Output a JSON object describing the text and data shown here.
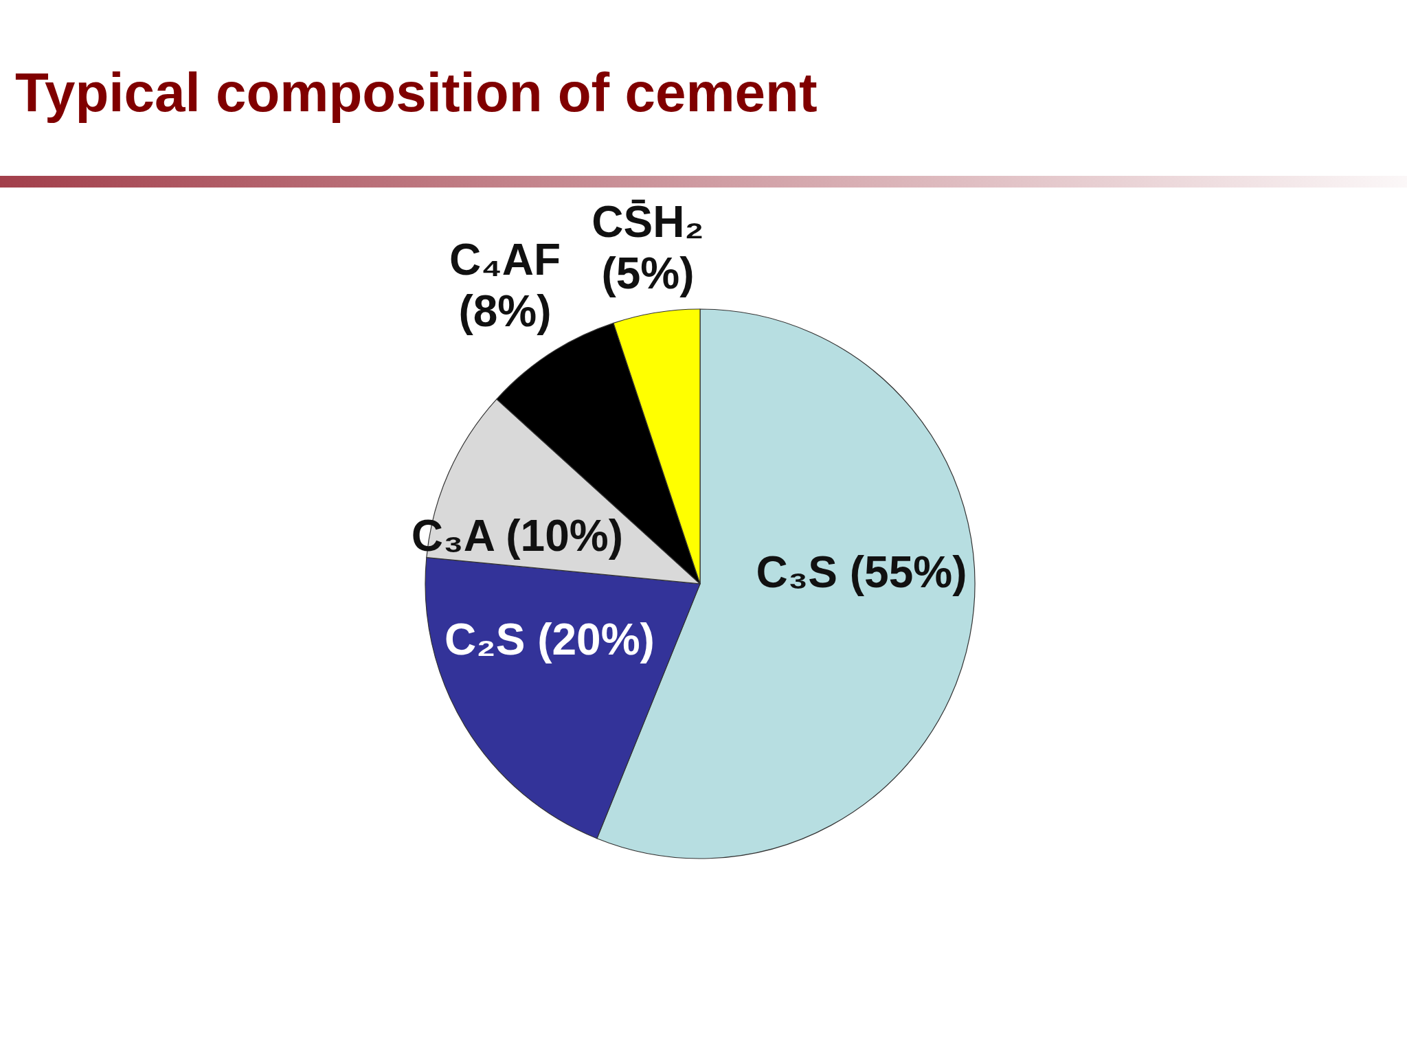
{
  "chart_data": {
    "type": "pie",
    "title": "Typical composition of cement",
    "categories": [
      "C₃S",
      "C₂S",
      "C₃A",
      "C₄AF",
      "CS̄H₂"
    ],
    "values": [
      55,
      20,
      10,
      8,
      5
    ],
    "colors": [
      "#b7dee1",
      "#333399",
      "#d9d9d9",
      "#000000",
      "#ffff00"
    ],
    "value_labels": [
      "(55%)",
      "(20%)",
      "(10%)",
      "(8%)",
      "(5%)"
    ]
  }
}
